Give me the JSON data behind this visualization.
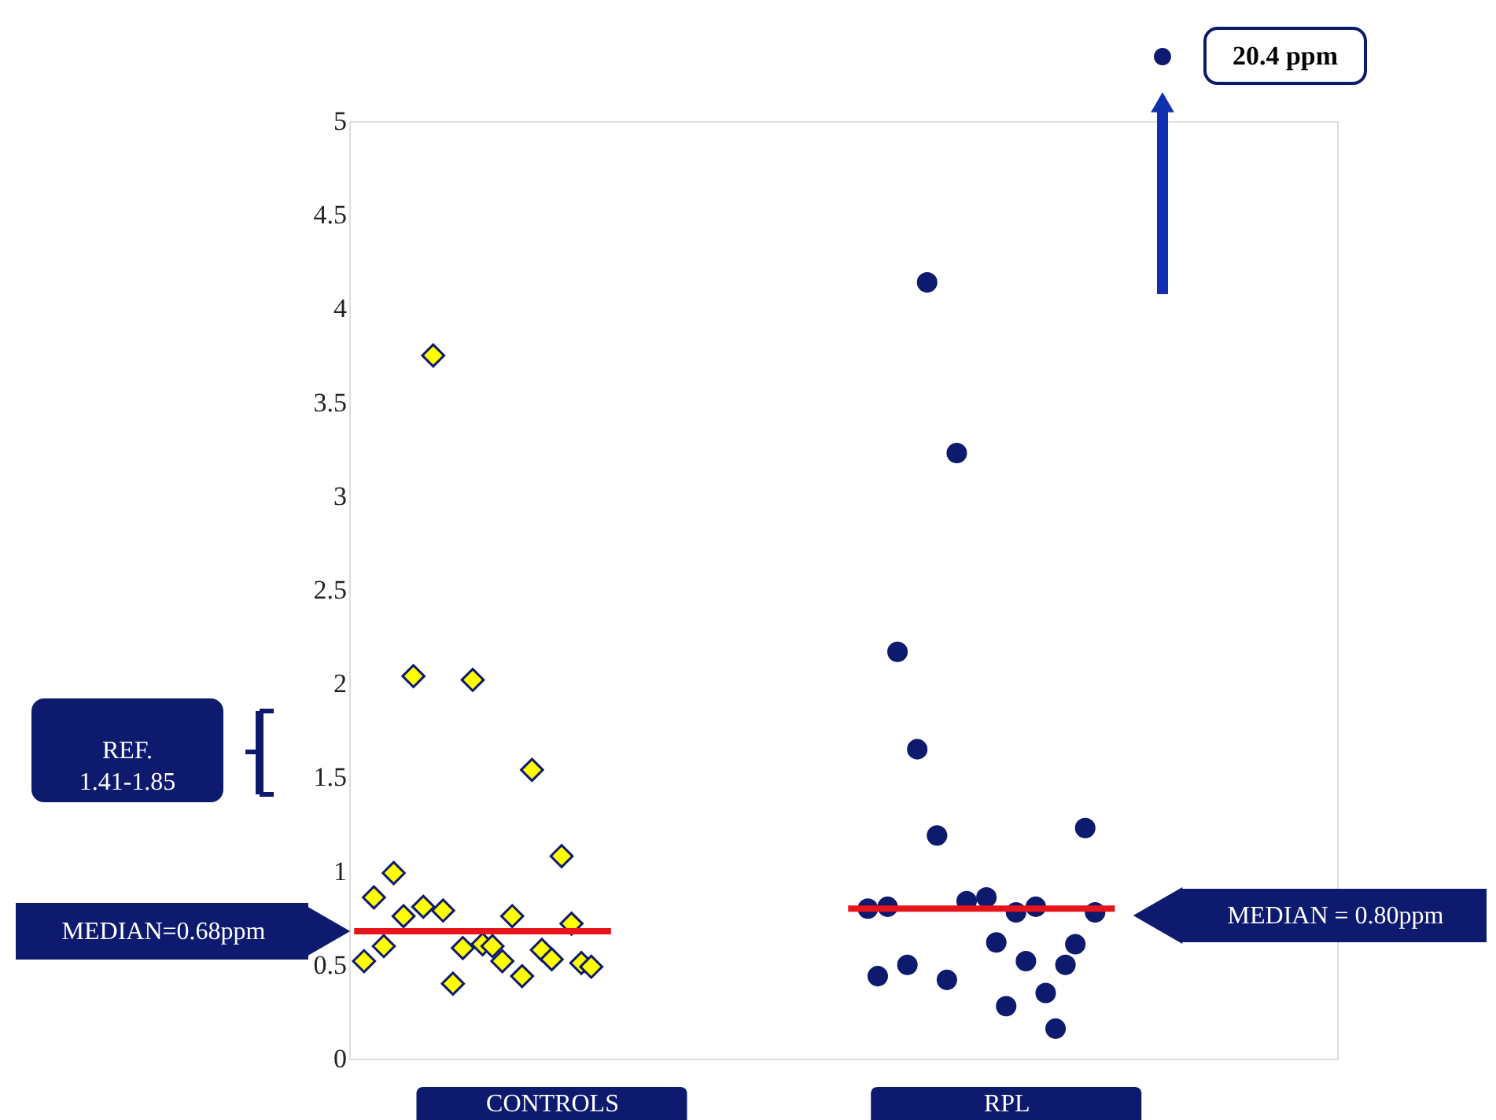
{
  "chart_data": {
    "type": "scatter",
    "categories": [
      null,
      null,
      null,
      null,
      null,
      null,
      null,
      null,
      null,
      null,
      null,
      null,
      null,
      null,
      null,
      null,
      null,
      null,
      null,
      null,
      "CONTROLS",
      null,
      null,
      null,
      null,
      null,
      null,
      null,
      null,
      null,
      null,
      null,
      null,
      null,
      null,
      null,
      null,
      null,
      null,
      null,
      null,
      null,
      null,
      null,
      null,
      null,
      null,
      null,
      null,
      null,
      null,
      null,
      null,
      null,
      null,
      null,
      null,
      null,
      null,
      null,
      null,
      null,
      null,
      null,
      null,
      null,
      "RPL",
      null,
      null,
      null,
      null,
      null,
      null,
      null,
      null,
      null,
      null,
      null,
      null,
      null,
      null,
      null,
      null,
      null,
      null,
      null,
      null,
      null,
      null,
      null,
      null,
      null,
      null,
      null,
      null,
      null,
      null,
      null,
      null,
      null
    ],
    "ylim": [
      0,
      5
    ],
    "yticks": [
      0,
      0.5,
      1,
      1.5,
      2,
      2.5,
      3,
      3.5,
      4,
      4.5,
      5
    ],
    "grid": false,
    "series": [
      {
        "marker": "diamond",
        "color": "#ffff00",
        "values": [
          null,
          0.52,
          0.86,
          0.6,
          0.99,
          0.76,
          2.04,
          0.81,
          3.75,
          0.79,
          0.4,
          0.59,
          2.02,
          0.61,
          0.6,
          0.52,
          0.76,
          0.44,
          1.54,
          0.58,
          0.53,
          1.08,
          0.72,
          0.51,
          0.49,
          null,
          null,
          null,
          null,
          null,
          null,
          null,
          null,
          null,
          null,
          null,
          null,
          null,
          null,
          null,
          null,
          null,
          null,
          null,
          null,
          null,
          null,
          null,
          null,
          null,
          null,
          null,
          null,
          null,
          null,
          null,
          null,
          null,
          null,
          null,
          null,
          null,
          null,
          null,
          null,
          null,
          null,
          null,
          null,
          null,
          null,
          null,
          null,
          null,
          null,
          null,
          null,
          null,
          null,
          null,
          null,
          null,
          null,
          null,
          null,
          null,
          null,
          null,
          null,
          null,
          null,
          null,
          null,
          null,
          null,
          null,
          null,
          null,
          null,
          null
        ]
      },
      {
        "marker": "circle",
        "color": "#0d1a6e",
        "values": [
          null,
          null,
          null,
          null,
          null,
          null,
          null,
          null,
          null,
          null,
          null,
          null,
          null,
          null,
          null,
          null,
          null,
          null,
          null,
          null,
          null,
          null,
          null,
          null,
          null,
          null,
          null,
          null,
          null,
          null,
          null,
          null,
          null,
          null,
          null,
          null,
          null,
          null,
          null,
          null,
          null,
          null,
          null,
          null,
          null,
          null,
          null,
          null,
          null,
          null,
          null,
          null,
          0.8,
          0.44,
          0.81,
          2.17,
          0.5,
          1.65,
          4.14,
          1.19,
          0.42,
          3.23,
          0.84,
          null,
          0.86,
          0.62,
          0.28,
          0.78,
          0.52,
          0.81,
          0.35,
          0.16,
          0.5,
          0.61,
          1.23,
          0.78,
          null,
          null,
          null,
          null,
          null,
          null,
          null,
          null,
          null,
          null,
          null,
          null,
          null,
          null,
          null,
          null,
          null,
          null,
          null,
          null,
          null,
          null,
          null,
          null
        ]
      },
      {
        "type": "line",
        "color": "#e8141b",
        "values": [
          0.68,
          0.68,
          0.68,
          0.68,
          0.68,
          0.68,
          0.68,
          0.68,
          0.68,
          0.68,
          0.68,
          0.68,
          0.68,
          0.68,
          0.68,
          0.68,
          0.68,
          0.68,
          0.68,
          0.68,
          0.68,
          0.68,
          0.68,
          0.68,
          0.68,
          0.68,
          0.68,
          null,
          null,
          null,
          null,
          null,
          null,
          null,
          null,
          null,
          null,
          null,
          null,
          null,
          null,
          null,
          null,
          null,
          null,
          null,
          null,
          null,
          null,
          null,
          null,
          null,
          null,
          null,
          null,
          null,
          null,
          null,
          null,
          null,
          null,
          null,
          null,
          null,
          null,
          null,
          null,
          null,
          null,
          null,
          null,
          null,
          null,
          null,
          null,
          null,
          null,
          null,
          null,
          null,
          null,
          null,
          null,
          null,
          null,
          null,
          null,
          null,
          null,
          null,
          null,
          null,
          null,
          null,
          null,
          null,
          null,
          null,
          null,
          null
        ]
      },
      {
        "type": "line",
        "color": "#e8141b",
        "values": [
          null,
          null,
          null,
          null,
          null,
          null,
          null,
          null,
          null,
          null,
          null,
          null,
          null,
          null,
          null,
          null,
          null,
          null,
          null,
          null,
          null,
          null,
          null,
          null,
          null,
          null,
          null,
          null,
          null,
          null,
          null,
          null,
          null,
          null,
          null,
          null,
          null,
          null,
          null,
          null,
          null,
          null,
          null,
          null,
          null,
          null,
          null,
          null,
          null,
          null,
          0.8,
          0.8,
          0.8,
          0.8,
          0.8,
          0.8,
          0.8,
          0.8,
          0.8,
          0.8,
          0.8,
          0.8,
          0.8,
          0.8,
          0.8,
          0.8,
          0.8,
          0.8,
          0.8,
          0.8,
          0.8,
          0.8,
          0.8,
          0.8,
          0.8,
          0.8,
          0.8,
          0.8,
          null,
          null,
          null,
          null,
          null,
          null,
          null,
          null,
          null,
          null,
          null,
          null,
          null,
          null,
          null,
          null,
          null,
          null,
          null,
          null,
          null,
          null
        ]
      }
    ],
    "annotations": [
      "MEDIAN=0.68ppm",
      "MEDIAN = 0.80ppm",
      "20.4 ppm",
      "REF. 1.41-1.85"
    ]
  }
}
